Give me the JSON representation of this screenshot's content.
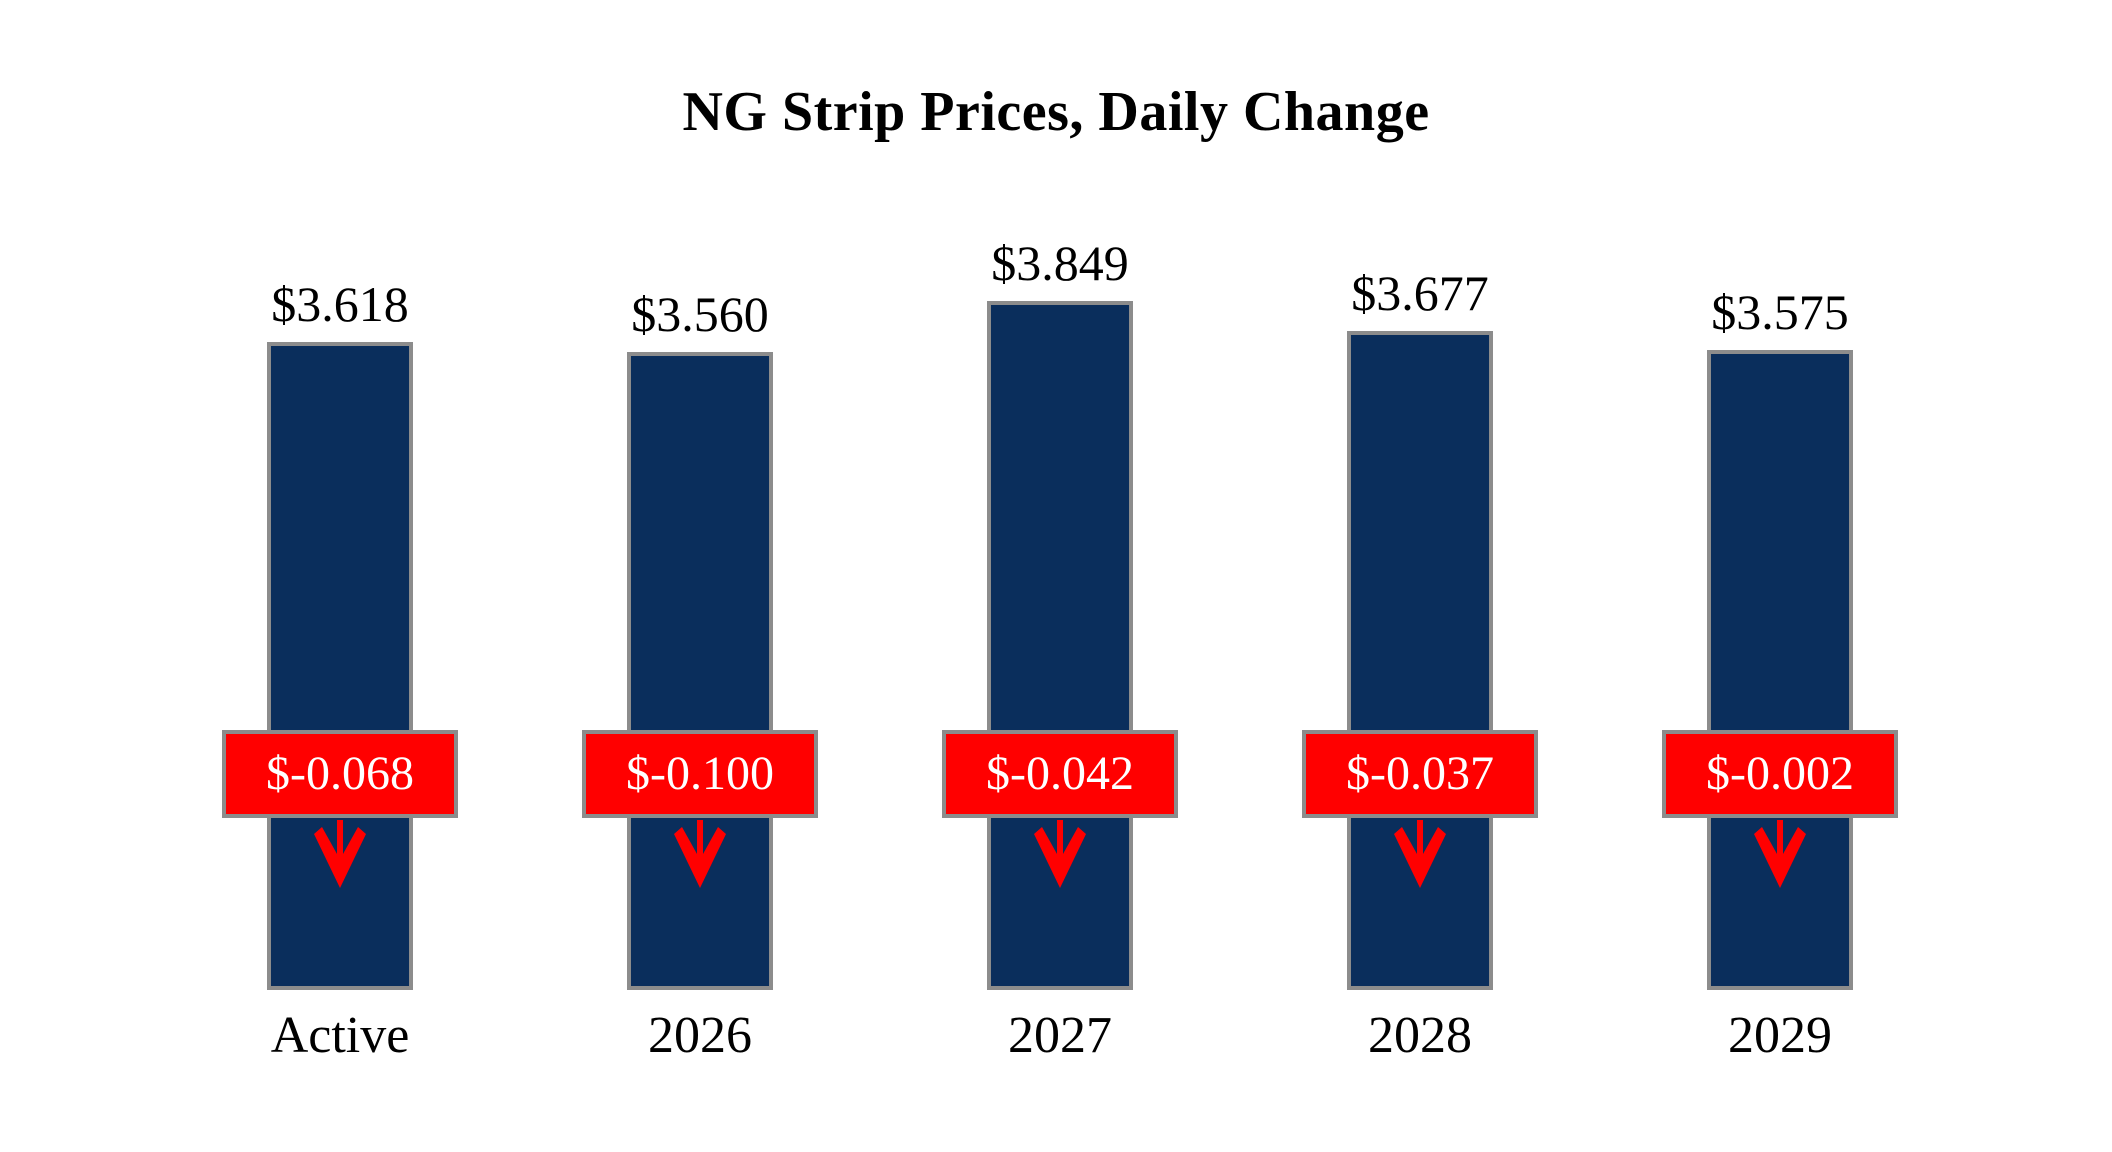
{
  "title": "NG Strip Prices, Daily Change",
  "chart_data": {
    "type": "bar",
    "title": "NG Strip Prices, Daily Change",
    "categories": [
      "Active",
      "2026",
      "2027",
      "2028",
      "2029"
    ],
    "values": [
      3.618,
      3.56,
      3.849,
      3.677,
      3.575
    ],
    "value_labels": [
      "$3.618",
      "$3.560",
      "$3.849",
      "$3.677",
      "$3.575"
    ],
    "changes": [
      -0.068,
      -0.1,
      -0.042,
      -0.037,
      -0.002
    ],
    "change_labels": [
      "$-0.068",
      "$-0.100",
      "$-0.042",
      "$-0.037",
      "$-0.002"
    ],
    "direction": "down",
    "xlabel": "",
    "ylabel": "",
    "ylim": [
      0,
      4.5
    ],
    "grid": false,
    "legend": "none",
    "colors": {
      "bar_fill": "#0a2e5c",
      "bar_border": "#8c8c8c",
      "change_box_fill": "#ff0000",
      "change_box_border": "#8c8c8c",
      "change_text": "#ffffff",
      "arrow": "#ff0000",
      "text": "#000000",
      "background": "#ffffff"
    }
  }
}
